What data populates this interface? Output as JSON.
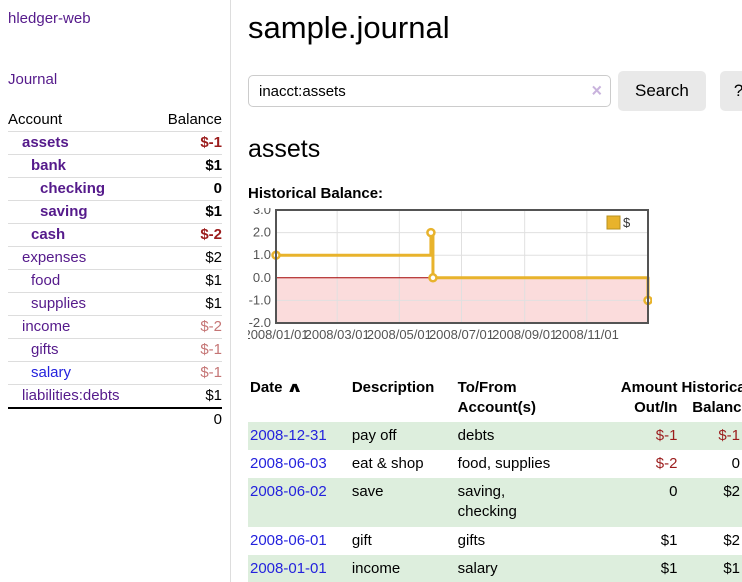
{
  "sidebar": {
    "brand": "hledger-web",
    "journal_link": "Journal",
    "accounts_header": {
      "account": "Account",
      "balance": "Balance"
    },
    "accounts": [
      {
        "name": "assets",
        "level": 0,
        "balance": "$-1",
        "bold": true,
        "balance_color": "dark-red"
      },
      {
        "name": "bank",
        "level": 1,
        "balance": "$1",
        "bold": true,
        "balance_color": "black"
      },
      {
        "name": "checking",
        "level": 2,
        "balance": "0",
        "bold": true,
        "balance_color": "black"
      },
      {
        "name": "saving",
        "level": 2,
        "balance": "$1",
        "bold": true,
        "balance_color": "black"
      },
      {
        "name": "cash",
        "level": 1,
        "balance": "$-2",
        "bold": true,
        "balance_color": "dark-red"
      },
      {
        "name": "expenses",
        "level": 0,
        "balance": "$2",
        "bold": false,
        "balance_color": "black"
      },
      {
        "name": "food",
        "level": 1,
        "balance": "$1",
        "bold": false,
        "balance_color": "black"
      },
      {
        "name": "supplies",
        "level": 1,
        "balance": "$1",
        "bold": false,
        "balance_color": "black"
      },
      {
        "name": "income",
        "level": 0,
        "balance": "$-2",
        "bold": false,
        "balance_color": "light-red"
      },
      {
        "name": "gifts",
        "level": 1,
        "balance": "$-1",
        "bold": false,
        "balance_color": "light-red"
      },
      {
        "name": "salary",
        "level": 1,
        "balance": "$-1",
        "bold": false,
        "balance_color": "light-red",
        "link_color": "blue"
      },
      {
        "name": "liabilities:debts",
        "level": 0,
        "balance": "$1",
        "bold": false,
        "balance_color": "black"
      }
    ],
    "total": "0"
  },
  "main": {
    "title": "sample.journal",
    "search": {
      "value": "inacct:assets",
      "clear_icon": "×",
      "button_label": "Search",
      "help_label": "?"
    },
    "account_heading": "assets",
    "chart_title_label": "Historical Balance:"
  },
  "chart_data": {
    "type": "line",
    "mode": "step",
    "title": "Historical Balance of assets",
    "legend": [
      {
        "label": "$",
        "color": "#e8b32c"
      }
    ],
    "legend_position": "top-right",
    "grid": true,
    "x_axis": {
      "unit": "day-of-year-2008",
      "range": [
        0,
        365
      ],
      "ticks": [
        {
          "pos": 0,
          "label": "2008/01/01"
        },
        {
          "pos": 60,
          "label": "2008/03/01"
        },
        {
          "pos": 121,
          "label": "2008/05/01"
        },
        {
          "pos": 182,
          "label": "2008/07/01"
        },
        {
          "pos": 244,
          "label": "2008/09/01"
        },
        {
          "pos": 305,
          "label": "2008/11/01"
        }
      ]
    },
    "y_axis": {
      "range": [
        -2,
        3
      ],
      "ticks": [
        {
          "v": 3,
          "label": "3.0"
        },
        {
          "v": 2,
          "label": "2.0"
        },
        {
          "v": 1,
          "label": "1.0"
        },
        {
          "v": 0,
          "label": "0.0"
        },
        {
          "v": -1,
          "label": "-1.0"
        },
        {
          "v": -2,
          "label": "-2.0"
        }
      ]
    },
    "series": [
      {
        "name": "$",
        "color": "#e8b32c",
        "points": [
          {
            "date": "2008-01-01",
            "x": 0,
            "y": 1
          },
          {
            "date": "2008-06-01",
            "x": 152,
            "y": 2
          },
          {
            "date": "2008-06-03",
            "x": 154,
            "y": 0
          },
          {
            "date": "2008-12-31",
            "x": 365,
            "y": -1
          }
        ]
      }
    ],
    "negative_region_fill": "#fbdcdc",
    "zero_line_color": "#a40000",
    "grid_color": "#e0e0e0",
    "border_color": "#545454"
  },
  "register": {
    "columns": [
      {
        "label": "Date",
        "sorted": true,
        "align": "left"
      },
      {
        "label": "Description",
        "align": "left"
      },
      {
        "label": "To/From Account(s)",
        "align": "left"
      },
      {
        "label": "Amount Out/In",
        "align": "right"
      },
      {
        "label": "Historical Balance",
        "align": "right"
      }
    ],
    "sort_icon": "∧",
    "rows": [
      {
        "date": "2008-12-31",
        "description": "pay off",
        "accounts": "debts",
        "amount": "$-1",
        "balance": "$-1"
      },
      {
        "date": "2008-06-03",
        "description": "eat & shop",
        "accounts": "food, supplies",
        "amount": "$-2",
        "balance": "0"
      },
      {
        "date": "2008-06-02",
        "description": "save",
        "accounts": "saving, checking",
        "amount": "0",
        "balance": "$2"
      },
      {
        "date": "2008-06-01",
        "description": "gift",
        "accounts": "gifts",
        "amount": "$1",
        "balance": "$2"
      },
      {
        "date": "2008-01-01",
        "description": "income",
        "accounts": "salary",
        "amount": "$1",
        "balance": "$1"
      }
    ]
  },
  "colors": {
    "accent_purple": "#551a8b",
    "link_blue": "#2422dd",
    "negative_dark": "#9b1c1c",
    "negative_light": "#c57575",
    "row_green": "#ddeedd",
    "gold": "#e8b32c"
  }
}
